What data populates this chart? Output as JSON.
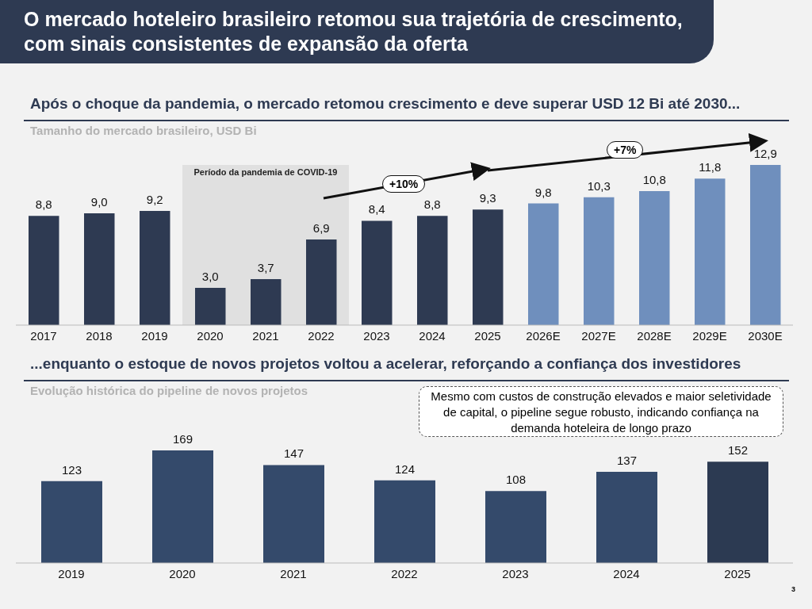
{
  "chart_data": [
    {
      "type": "bar",
      "title": "O mercado hoteleiro brasileiro retomou sua trajetória de crescimento, com sinais consistentes de expansão da oferta",
      "subtitle": "Após o choque da pandemia, o mercado retomou crescimento e deve superar USD 12 Bi até 2030...",
      "ylabel": "Tamanho do mercado brasileiro, USD Bi",
      "categories": [
        "2017",
        "2018",
        "2019",
        "2020",
        "2021",
        "2022",
        "2023",
        "2024",
        "2025",
        "2026E",
        "2027E",
        "2028E",
        "2029E",
        "2030E"
      ],
      "values": [
        8.8,
        9.0,
        9.2,
        3.0,
        3.7,
        6.9,
        8.4,
        8.8,
        9.3,
        9.8,
        10.3,
        10.8,
        11.8,
        12.9
      ],
      "value_labels": [
        "8,8",
        "9,0",
        "9,2",
        "3,0",
        "3,7",
        "6,9",
        "8,4",
        "8,8",
        "9,3",
        "9,8",
        "10,3",
        "10,8",
        "11,8",
        "12,9"
      ],
      "colors": [
        "#2e3a52",
        "#2e3a52",
        "#2e3a52",
        "#2e3a52",
        "#2e3a52",
        "#2e3a52",
        "#2e3a52",
        "#2e3a52",
        "#2e3a52",
        "#6f8fbd",
        "#6f8fbd",
        "#6f8fbd",
        "#6f8fbd",
        "#6f8fbd"
      ],
      "bands": [
        {
          "axis": "x",
          "from": "2020",
          "to": "2022",
          "label": "Período da pandemia de COVID-19",
          "color": "#e0e0e0"
        }
      ],
      "annotations": [
        "+10%",
        "+7%"
      ]
    },
    {
      "type": "bar",
      "subtitle": "...enquanto o estoque de novos projetos voltou a acelerar, reforçando a confiança dos investidores",
      "ylabel": "Evolução histórica do pipeline de novos projetos",
      "categories": [
        "2019",
        "2020",
        "2021",
        "2022",
        "2023",
        "2024",
        "2025"
      ],
      "values": [
        123,
        169,
        147,
        124,
        108,
        137,
        152
      ],
      "data_labels": true,
      "colors": [
        "#344a6b",
        "#344a6b",
        "#344a6b",
        "#344a6b",
        "#344a6b",
        "#344a6b",
        "#2c3a52"
      ],
      "annotations": [
        "Mesmo com custos de construção elevados e maior seletividade de capital, o pipeline segue robusto, indicando confiança na demanda hoteleira de longo prazo",
        "3"
      ]
    }
  ]
}
